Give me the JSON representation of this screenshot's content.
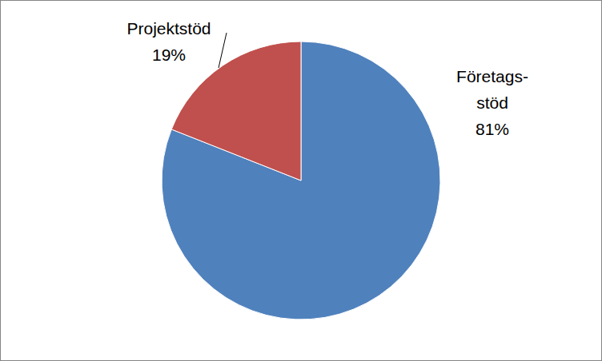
{
  "chart_data": {
    "type": "pie",
    "categories": [
      "Företags-stöd",
      "Projektstöd"
    ],
    "values": [
      81,
      19
    ],
    "value_labels": [
      "81%",
      "19%"
    ],
    "colors": [
      "#4f81bd",
      "#c0504d"
    ],
    "data_labels": true
  }
}
